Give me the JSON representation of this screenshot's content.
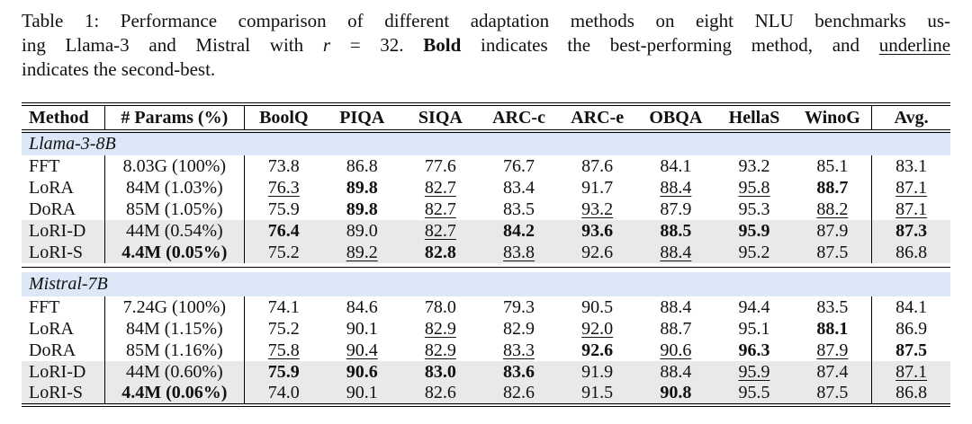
{
  "caption": {
    "line1": "Table 1: Performance comparison of different adaptation methods on eight NLU benchmarks us-",
    "line2": {
      "pre": "ing Llama-3 and Mistral with",
      "var": "r",
      "eq": "= 32.",
      "bold_word": "Bold",
      "mid": "indicates the best-performing method, and",
      "underline_word": "underline"
    },
    "line3": "indicates the second-best."
  },
  "colors": {
    "section_bg": "#dce8f7",
    "highlight_bg": "#e9e9e9",
    "rule": "#000000"
  },
  "table": {
    "columns": [
      "Method",
      "# Params (%)",
      "BoolQ",
      "PIQA",
      "SIQA",
      "ARC-c",
      "ARC-e",
      "OBQA",
      "HellaS",
      "WinoG",
      "Avg."
    ],
    "sections": [
      {
        "name": "Llama-3-8B",
        "rows": [
          {
            "method": "FFT",
            "params": {
              "v": "8.03G (100%)"
            },
            "highlight": false,
            "cells": [
              {
                "v": "73.8"
              },
              {
                "v": "86.8"
              },
              {
                "v": "77.6"
              },
              {
                "v": "76.7"
              },
              {
                "v": "87.6"
              },
              {
                "v": "84.1"
              },
              {
                "v": "93.2"
              },
              {
                "v": "85.1"
              },
              {
                "v": "83.1"
              }
            ]
          },
          {
            "method": "LoRA",
            "params": {
              "v": "84M (1.03%)"
            },
            "highlight": false,
            "cells": [
              {
                "v": "76.3",
                "s": "u"
              },
              {
                "v": "89.8",
                "s": "b"
              },
              {
                "v": "82.7",
                "s": "u"
              },
              {
                "v": "83.4"
              },
              {
                "v": "91.7"
              },
              {
                "v": "88.4",
                "s": "u"
              },
              {
                "v": "95.8",
                "s": "u"
              },
              {
                "v": "88.7",
                "s": "b"
              },
              {
                "v": "87.1",
                "s": "u"
              }
            ]
          },
          {
            "method": "DoRA",
            "params": {
              "v": "85M (1.05%)"
            },
            "highlight": false,
            "cells": [
              {
                "v": "75.9"
              },
              {
                "v": "89.8",
                "s": "b"
              },
              {
                "v": "82.7",
                "s": "u"
              },
              {
                "v": "83.5"
              },
              {
                "v": "93.2",
                "s": "u"
              },
              {
                "v": "87.9"
              },
              {
                "v": "95.3"
              },
              {
                "v": "88.2",
                "s": "u"
              },
              {
                "v": "87.1",
                "s": "u"
              }
            ]
          },
          {
            "method": "LoRI-D",
            "params": {
              "v": "44M (0.54%)"
            },
            "highlight": true,
            "cells": [
              {
                "v": "76.4",
                "s": "b"
              },
              {
                "v": "89.0"
              },
              {
                "v": "82.7",
                "s": "u"
              },
              {
                "v": "84.2",
                "s": "b"
              },
              {
                "v": "93.6",
                "s": "b"
              },
              {
                "v": "88.5",
                "s": "b"
              },
              {
                "v": "95.9",
                "s": "b"
              },
              {
                "v": "87.9"
              },
              {
                "v": "87.3",
                "s": "b"
              }
            ]
          },
          {
            "method": "LoRI-S",
            "params": {
              "v": "4.4M (0.05%)",
              "s": "b"
            },
            "highlight": true,
            "cells": [
              {
                "v": "75.2"
              },
              {
                "v": "89.2",
                "s": "u"
              },
              {
                "v": "82.8",
                "s": "b"
              },
              {
                "v": "83.8",
                "s": "u"
              },
              {
                "v": "92.6"
              },
              {
                "v": "88.4",
                "s": "u"
              },
              {
                "v": "95.2"
              },
              {
                "v": "87.5"
              },
              {
                "v": "86.8"
              }
            ]
          }
        ]
      },
      {
        "name": "Mistral-7B",
        "rows": [
          {
            "method": "FFT",
            "params": {
              "v": "7.24G (100%)"
            },
            "highlight": false,
            "cells": [
              {
                "v": "74.1"
              },
              {
                "v": "84.6"
              },
              {
                "v": "78.0"
              },
              {
                "v": "79.3"
              },
              {
                "v": "90.5"
              },
              {
                "v": "88.4"
              },
              {
                "v": "94.4"
              },
              {
                "v": "83.5"
              },
              {
                "v": "84.1"
              }
            ]
          },
          {
            "method": "LoRA",
            "params": {
              "v": "84M (1.15%)"
            },
            "highlight": false,
            "cells": [
              {
                "v": "75.2"
              },
              {
                "v": "90.1"
              },
              {
                "v": "82.9",
                "s": "u"
              },
              {
                "v": "82.9"
              },
              {
                "v": "92.0",
                "s": "u"
              },
              {
                "v": "88.7"
              },
              {
                "v": "95.1"
              },
              {
                "v": "88.1",
                "s": "b"
              },
              {
                "v": "86.9"
              }
            ]
          },
          {
            "method": "DoRA",
            "params": {
              "v": "85M (1.16%)"
            },
            "highlight": false,
            "cells": [
              {
                "v": "75.8",
                "s": "u"
              },
              {
                "v": "90.4",
                "s": "u"
              },
              {
                "v": "82.9",
                "s": "u"
              },
              {
                "v": "83.3",
                "s": "u"
              },
              {
                "v": "92.6",
                "s": "b"
              },
              {
                "v": "90.6",
                "s": "u"
              },
              {
                "v": "96.3",
                "s": "b"
              },
              {
                "v": "87.9",
                "s": "u"
              },
              {
                "v": "87.5",
                "s": "b"
              }
            ]
          },
          {
            "method": "LoRI-D",
            "params": {
              "v": "44M (0.60%)"
            },
            "highlight": true,
            "cells": [
              {
                "v": "75.9",
                "s": "b"
              },
              {
                "v": "90.6",
                "s": "b"
              },
              {
                "v": "83.0",
                "s": "b"
              },
              {
                "v": "83.6",
                "s": "b"
              },
              {
                "v": "91.9"
              },
              {
                "v": "88.4"
              },
              {
                "v": "95.9",
                "s": "u"
              },
              {
                "v": "87.4"
              },
              {
                "v": "87.1",
                "s": "u"
              }
            ]
          },
          {
            "method": "LoRI-S",
            "params": {
              "v": "4.4M (0.06%)",
              "s": "b"
            },
            "highlight": true,
            "cells": [
              {
                "v": "74.0"
              },
              {
                "v": "90.1"
              },
              {
                "v": "82.6"
              },
              {
                "v": "82.6"
              },
              {
                "v": "91.5"
              },
              {
                "v": "90.8",
                "s": "b"
              },
              {
                "v": "95.5"
              },
              {
                "v": "87.5"
              },
              {
                "v": "86.8"
              }
            ]
          }
        ]
      }
    ]
  }
}
